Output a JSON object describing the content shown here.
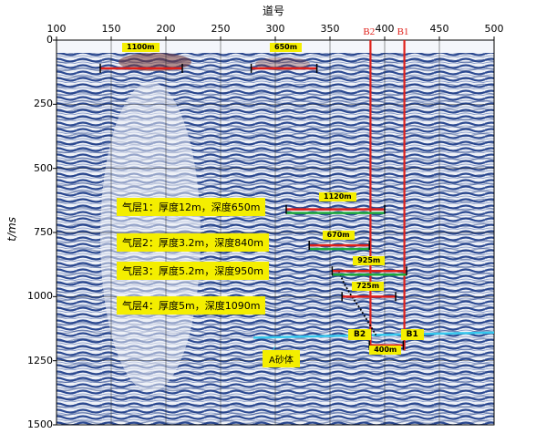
{
  "axis": {
    "x_title": "道号",
    "y_title": "t/ms",
    "x_ticks": [
      "100",
      "150",
      "200",
      "250",
      "300",
      "350",
      "400",
      "450",
      "500"
    ],
    "y_ticks": [
      "0",
      "250",
      "500",
      "750",
      "1000",
      "1250",
      "1500"
    ],
    "x_range": [
      100,
      500
    ],
    "y_range": [
      0,
      1500
    ]
  },
  "wells": [
    {
      "name": "B2",
      "trace": 387,
      "color": "#e0201a"
    },
    {
      "name": "B1",
      "trace": 418,
      "color": "#e0201a"
    }
  ],
  "extent_markers": [
    {
      "label": "1100m",
      "trace_from": 140,
      "trace_to": 215,
      "time": 110,
      "label_trace": 175,
      "label_time": 28
    },
    {
      "label": "650m",
      "trace_from": 278,
      "trace_to": 338,
      "time": 110,
      "label_trace": 310,
      "label_time": 28
    },
    {
      "label": "1120m",
      "trace_from": 310,
      "trace_to": 400,
      "time": 660,
      "label_trace": 355,
      "label_time": 613
    },
    {
      "label": "670m",
      "trace_from": 331,
      "trace_to": 386,
      "time": 800,
      "label_trace": 358,
      "label_time": 760
    },
    {
      "label": "925m",
      "trace_from": 352,
      "trace_to": 420,
      "time": 900,
      "label_trace": 386,
      "label_time": 860
    },
    {
      "label": "725m",
      "trace_from": 361,
      "trace_to": 410,
      "time": 1000,
      "label_trace": 385,
      "label_time": 960
    },
    {
      "label": "400m",
      "trace_from": 386,
      "trace_to": 417,
      "time": 1190,
      "label_trace": 401,
      "label_time": 1210
    }
  ],
  "gas_layers": [
    {
      "label": "气层1：厚度12m，深度650m",
      "trace": 170,
      "time": 648
    },
    {
      "label": "气层2：厚度3.2m，深度840m",
      "trace": 170,
      "time": 785
    },
    {
      "label": "气层3：厚度5.2m，深度950m",
      "trace": 170,
      "time": 895
    },
    {
      "label": "气层4：厚度5m，深度1090m",
      "trace": 170,
      "time": 1030
    }
  ],
  "sand_body": {
    "label": "A砂体",
    "trace": 295,
    "time": 1240
  },
  "well_boxes": [
    {
      "label": "B2",
      "trace": 375,
      "time": 1150
    },
    {
      "label": "B1",
      "trace": 423,
      "time": 1150
    }
  ],
  "colors": {
    "marker": "#e0201a",
    "label_bg": "#f4ee00",
    "sand_line": "#36c8ee",
    "green_band": "#1faa3c"
  }
}
